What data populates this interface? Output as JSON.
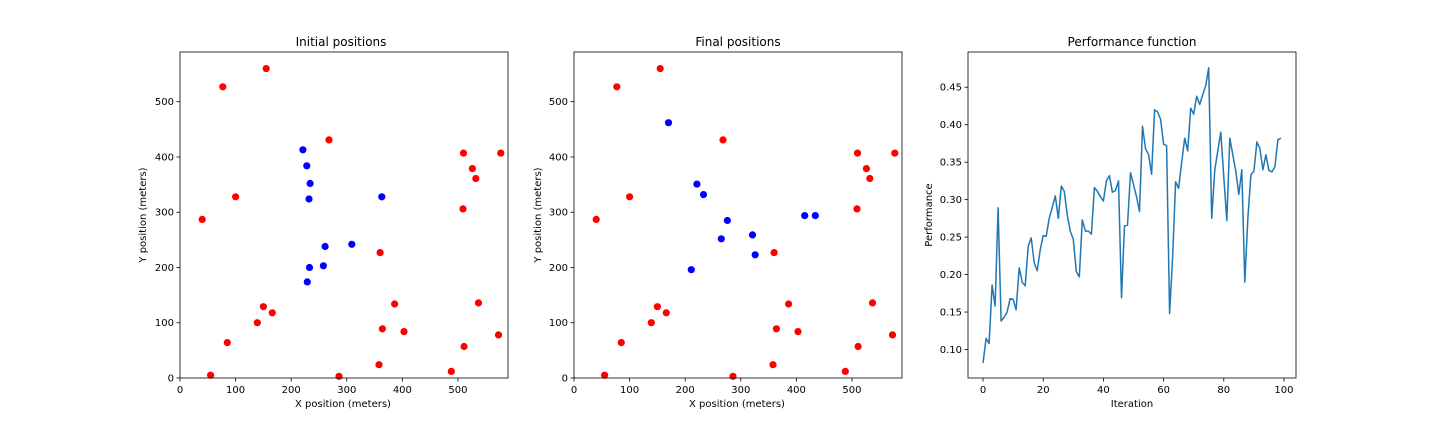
{
  "chart_data": [
    {
      "type": "scatter",
      "title": "Initial positions",
      "xlabel": "X position (meters)",
      "ylabel": "Y position (meters)",
      "xlim": [
        0,
        590
      ],
      "ylim": [
        0,
        590
      ],
      "xticks": [
        0,
        100,
        200,
        300,
        400,
        500
      ],
      "yticks": [
        0,
        100,
        200,
        300,
        400,
        500
      ],
      "series": [
        {
          "color": "#ff0000",
          "points": [
            [
              155,
              560
            ],
            [
              77,
              527
            ],
            [
              268,
              431
            ],
            [
              510,
              407
            ],
            [
              577,
              407
            ],
            [
              526,
              379
            ],
            [
              532,
              361
            ],
            [
              100,
              328
            ],
            [
              40,
              287
            ],
            [
              509,
              306
            ],
            [
              360,
              227
            ],
            [
              386,
              134
            ],
            [
              537,
              136
            ],
            [
              150,
              129
            ],
            [
              166,
              118
            ],
            [
              139,
              100
            ],
            [
              364,
              89
            ],
            [
              403,
              84
            ],
            [
              573,
              78
            ],
            [
              85,
              64
            ],
            [
              511,
              57
            ],
            [
              358,
              24
            ],
            [
              55,
              5
            ],
            [
              488,
              12
            ],
            [
              286,
              3
            ]
          ]
        },
        {
          "color": "#0000ff",
          "points": [
            [
              221,
              413
            ],
            [
              228,
              384
            ],
            [
              234,
              352
            ],
            [
              232,
              324
            ],
            [
              363,
              328
            ],
            [
              309,
              242
            ],
            [
              261,
              238
            ],
            [
              233,
              200
            ],
            [
              258,
              203
            ],
            [
              229,
              174
            ]
          ]
        }
      ]
    },
    {
      "type": "scatter",
      "title": "Final positions",
      "xlabel": "X position (meters)",
      "ylabel": "Y position (meters)",
      "xlim": [
        0,
        590
      ],
      "ylim": [
        0,
        590
      ],
      "xticks": [
        0,
        100,
        200,
        300,
        400,
        500
      ],
      "yticks": [
        0,
        100,
        200,
        300,
        400,
        500
      ],
      "series": [
        {
          "color": "#ff0000",
          "points": [
            [
              155,
              560
            ],
            [
              77,
              527
            ],
            [
              268,
              431
            ],
            [
              510,
              407
            ],
            [
              577,
              407
            ],
            [
              526,
              379
            ],
            [
              532,
              361
            ],
            [
              100,
              328
            ],
            [
              40,
              287
            ],
            [
              509,
              306
            ],
            [
              360,
              227
            ],
            [
              386,
              134
            ],
            [
              537,
              136
            ],
            [
              150,
              129
            ],
            [
              166,
              118
            ],
            [
              139,
              100
            ],
            [
              364,
              89
            ],
            [
              403,
              84
            ],
            [
              573,
              78
            ],
            [
              85,
              64
            ],
            [
              511,
              57
            ],
            [
              358,
              24
            ],
            [
              55,
              5
            ],
            [
              488,
              12
            ],
            [
              286,
              3
            ]
          ]
        },
        {
          "color": "#0000ff",
          "points": [
            [
              170,
              462
            ],
            [
              221,
              351
            ],
            [
              233,
              332
            ],
            [
              276,
              285
            ],
            [
              265,
              252
            ],
            [
              321,
              259
            ],
            [
              326,
              223
            ],
            [
              211,
              196
            ],
            [
              415,
              294
            ],
            [
              434,
              294
            ]
          ]
        }
      ]
    },
    {
      "type": "line",
      "title": "Performance function",
      "xlabel": "Iteration",
      "ylabel": "Performance",
      "xlim": [
        -5,
        104
      ],
      "ylim": [
        0.062,
        0.497
      ],
      "xticks": [
        0,
        20,
        40,
        60,
        80,
        100
      ],
      "yticks": [
        0.1,
        0.15,
        0.2,
        0.25,
        0.3,
        0.35,
        0.4,
        0.45
      ],
      "ytick_labels": [
        "0.10",
        "0.15",
        "0.20",
        "0.25",
        "0.30",
        "0.35",
        "0.40",
        "0.45"
      ],
      "color": "#1f77b4",
      "x": [
        0,
        1,
        2,
        3,
        4,
        5,
        6,
        7,
        8,
        9,
        10,
        11,
        12,
        13,
        14,
        15,
        16,
        17,
        18,
        19,
        20,
        21,
        22,
        23,
        24,
        25,
        26,
        27,
        28,
        29,
        30,
        31,
        32,
        33,
        34,
        35,
        36,
        37,
        38,
        39,
        40,
        41,
        42,
        43,
        44,
        45,
        46,
        47,
        48,
        49,
        50,
        51,
        52,
        53,
        54,
        55,
        56,
        57,
        58,
        59,
        60,
        61,
        62,
        63,
        64,
        65,
        66,
        67,
        68,
        69,
        70,
        71,
        72,
        73,
        74,
        75,
        76,
        77,
        78,
        79,
        80,
        81,
        82,
        83,
        84,
        85,
        86,
        87,
        88,
        89,
        90,
        91,
        92,
        93,
        94,
        95,
        96,
        97,
        98,
        99
      ],
      "y": [
        0.082,
        0.115,
        0.108,
        0.186,
        0.158,
        0.289,
        0.138,
        0.143,
        0.15,
        0.168,
        0.167,
        0.153,
        0.209,
        0.19,
        0.185,
        0.238,
        0.249,
        0.216,
        0.205,
        0.233,
        0.252,
        0.251,
        0.275,
        0.29,
        0.305,
        0.275,
        0.318,
        0.311,
        0.279,
        0.258,
        0.247,
        0.204,
        0.197,
        0.273,
        0.258,
        0.258,
        0.254,
        0.316,
        0.311,
        0.304,
        0.298,
        0.325,
        0.332,
        0.31,
        0.312,
        0.325,
        0.169,
        0.265,
        0.266,
        0.336,
        0.32,
        0.304,
        0.284,
        0.398,
        0.368,
        0.36,
        0.334,
        0.42,
        0.417,
        0.407,
        0.374,
        0.372,
        0.148,
        0.222,
        0.324,
        0.315,
        0.35,
        0.382,
        0.365,
        0.422,
        0.414,
        0.438,
        0.427,
        0.44,
        0.452,
        0.476,
        0.275,
        0.34,
        0.365,
        0.39,
        0.33,
        0.272,
        0.382,
        0.36,
        0.338,
        0.307,
        0.34,
        0.19,
        0.276,
        0.333,
        0.338,
        0.377,
        0.368,
        0.34,
        0.36,
        0.339,
        0.337,
        0.344,
        0.38,
        0.382
      ]
    }
  ]
}
